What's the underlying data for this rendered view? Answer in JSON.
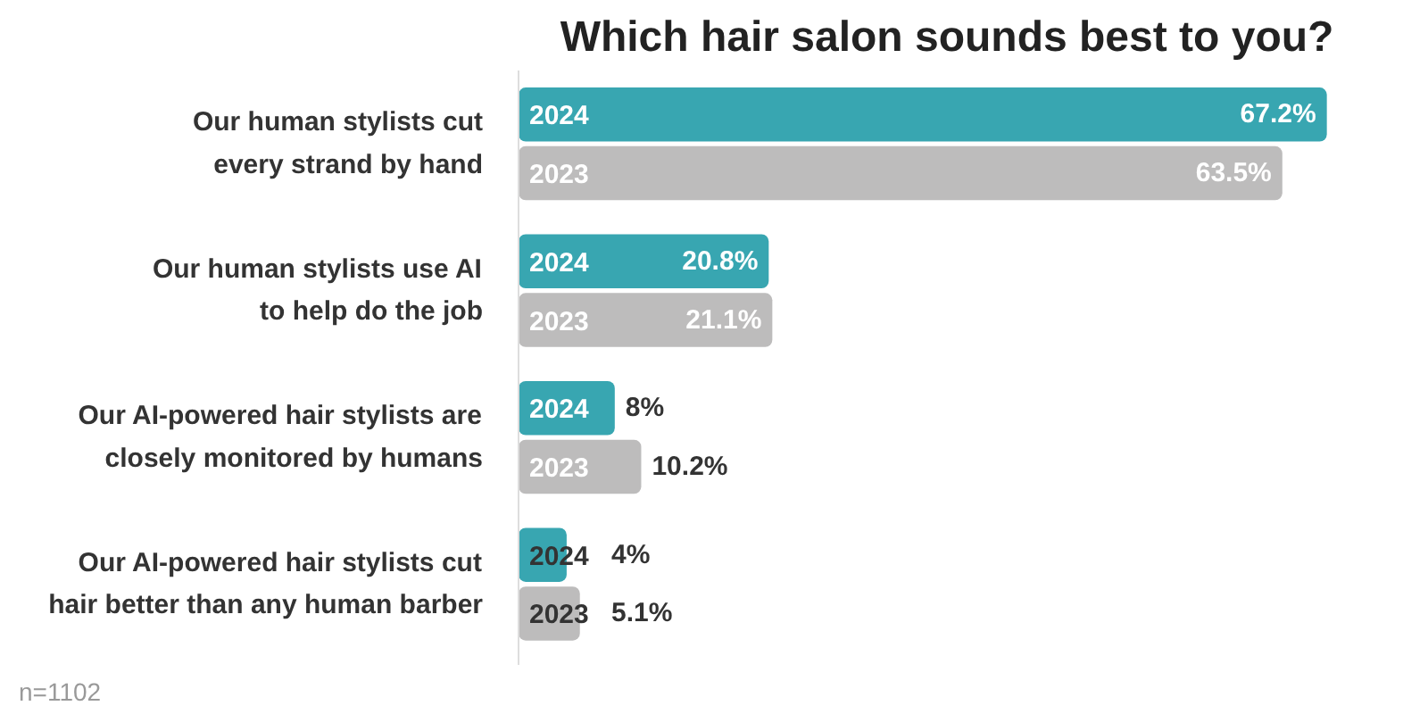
{
  "chart_data": {
    "type": "bar",
    "orientation": "horizontal",
    "title": "Which hair salon sounds best to you?",
    "categories": [
      "Our human stylists cut\nevery strand by hand",
      "Our human stylists use AI\nto help do the job",
      "Our AI-powered hair stylists are\nclosely monitored by humans",
      "Our AI-powered hair stylists cut\nhair better than any human barber"
    ],
    "series": [
      {
        "name": "2024",
        "color": "#38a6b1",
        "values": [
          67.2,
          20.8,
          8,
          4
        ],
        "value_labels": [
          "67.2%",
          "20.8%",
          "8%",
          "4%"
        ]
      },
      {
        "name": "2023",
        "color": "#bdbcbc",
        "values": [
          63.5,
          21.1,
          10.2,
          5.1
        ],
        "value_labels": [
          "63.5%",
          "21.1%",
          "10.2%",
          "5.1%"
        ]
      }
    ],
    "tick_labels": "y",
    "grid": false,
    "annotations": [
      "n=1102"
    ]
  }
}
